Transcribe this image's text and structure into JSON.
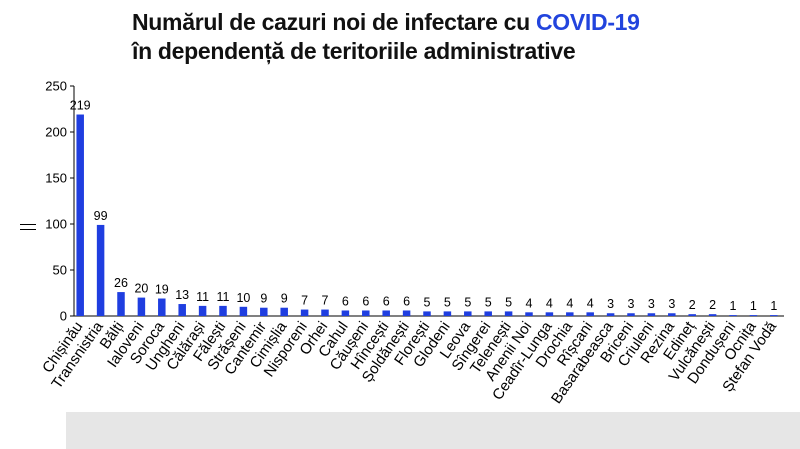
{
  "title": {
    "line1_prefix": "Numărul de cazuri noi de infectare cu ",
    "line1_highlight": "COVID-19",
    "line2": "în dependență de teritoriile administrative"
  },
  "colors": {
    "bar": "#1f3ee0",
    "highlight": "#2244dd",
    "axis": "#000000"
  },
  "chart_data": {
    "type": "bar",
    "title": "Numărul de cazuri noi de infectare cu COVID-19 în dependență de teritoriile administrative",
    "xlabel": "",
    "ylabel": "",
    "ylim": [
      0,
      250
    ],
    "yticks": [
      0,
      50,
      100,
      150,
      200,
      250
    ],
    "grid": false,
    "categories": [
      "Chișinău",
      "Transnistria",
      "Bălți",
      "Ialoveni",
      "Soroca",
      "Ungheni",
      "Călărași",
      "Fălești",
      "Strășeni",
      "Cantemir",
      "Cimișlia",
      "Nisporeni",
      "Orhei",
      "Cahul",
      "Căușeni",
      "Hîncești",
      "Șoldănești",
      "Florești",
      "Glodeni",
      "Leova",
      "Sîngerei",
      "Telenești",
      "Anenii Noi",
      "Ceadîr-Lunga",
      "Drochia",
      "Rîșcani",
      "Basarabeasca",
      "Briceni",
      "Criuleni",
      "Rezina",
      "Edineț",
      "Vulcănești",
      "Dondușeni",
      "Ocnița",
      "Ștefan Vodă"
    ],
    "values": [
      219,
      99,
      26,
      20,
      19,
      13,
      11,
      11,
      10,
      9,
      9,
      7,
      7,
      6,
      6,
      6,
      6,
      5,
      5,
      5,
      5,
      5,
      4,
      4,
      4,
      4,
      3,
      3,
      3,
      3,
      2,
      2,
      1,
      1,
      1
    ]
  }
}
